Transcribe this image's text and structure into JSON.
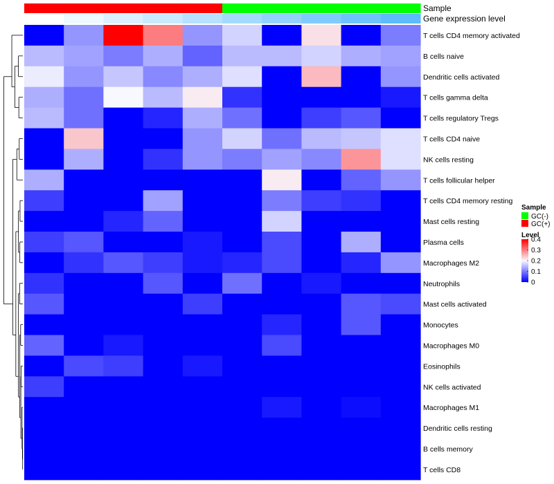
{
  "chart_data": {
    "type": "heatmap",
    "title": "",
    "annotation_labels": [
      "Sample",
      "Gene expression level"
    ],
    "rows": [
      "T cells CD4 memory activated",
      "B cells naive",
      "Dendritic cells activated",
      "T cells gamma delta",
      "T cells regulatory  Tregs",
      "T cells CD4 naive",
      "NK cells resting",
      "T cells follicular helper",
      "T cells CD4 memory resting",
      "Mast cells resting",
      "Plasma cells",
      "Macrophages M2",
      "Neutrophils",
      "Mast cells activated",
      "Monocytes",
      "Macrophages M0",
      "Eosinophils",
      "NK cells activated",
      "Macrophages M1",
      "Dendritic cells resting",
      "B cells memory",
      "T cells CD8"
    ],
    "sample_groups": [
      "GC(+)",
      "GC(+)",
      "GC(+)",
      "GC(+)",
      "GC(+)",
      "GC(-)",
      "GC(-)",
      "GC(-)",
      "GC(-)",
      "GC(-)"
    ],
    "sample_group_colors": {
      "GC(-)": "#00ff00",
      "GC(+)": "#ff0000"
    },
    "expression_annotation": [
      0.0,
      0.02,
      0.04,
      0.06,
      0.08,
      0.1,
      0.12,
      0.14,
      0.16,
      0.18
    ],
    "values": [
      [
        0.0,
        0.12,
        0.4,
        0.3,
        0.12,
        0.17,
        0.0,
        0.22,
        0.0,
        0.1
      ],
      [
        0.15,
        0.13,
        0.1,
        0.14,
        0.08,
        0.15,
        0.15,
        0.17,
        0.14,
        0.13
      ],
      [
        0.19,
        0.12,
        0.16,
        0.11,
        0.14,
        0.18,
        0.0,
        0.25,
        0.0,
        0.12
      ],
      [
        0.14,
        0.09,
        0.2,
        0.15,
        0.21,
        0.04,
        0.0,
        0.0,
        0.0,
        0.02
      ],
      [
        0.15,
        0.09,
        0.0,
        0.03,
        0.14,
        0.09,
        0.0,
        0.05,
        0.07,
        0.0
      ],
      [
        0.0,
        0.24,
        0.0,
        0.0,
        0.12,
        0.17,
        0.09,
        0.15,
        0.16,
        0.18
      ],
      [
        0.0,
        0.14,
        0.0,
        0.04,
        0.12,
        0.1,
        0.13,
        0.11,
        0.28,
        0.18
      ],
      [
        0.14,
        0.0,
        0.0,
        0.0,
        0.0,
        0.0,
        0.21,
        0.0,
        0.08,
        0.12
      ],
      [
        0.05,
        0.0,
        0.0,
        0.13,
        0.0,
        0.0,
        0.1,
        0.05,
        0.04,
        0.0
      ],
      [
        0.0,
        0.0,
        0.03,
        0.08,
        0.0,
        0.0,
        0.17,
        0.0,
        0.0,
        0.0
      ],
      [
        0.05,
        0.07,
        0.0,
        0.0,
        0.02,
        0.0,
        0.06,
        0.0,
        0.14,
        0.0
      ],
      [
        0.0,
        0.04,
        0.07,
        0.05,
        0.02,
        0.03,
        0.06,
        0.0,
        0.03,
        0.12
      ],
      [
        0.04,
        0.0,
        0.0,
        0.07,
        0.0,
        0.09,
        0.0,
        0.02,
        0.0,
        0.0
      ],
      [
        0.07,
        0.0,
        0.0,
        0.0,
        0.05,
        0.0,
        0.0,
        0.0,
        0.07,
        0.06
      ],
      [
        0.0,
        0.0,
        0.0,
        0.0,
        0.0,
        0.0,
        0.03,
        0.0,
        0.07,
        0.0
      ],
      [
        0.08,
        0.0,
        0.02,
        0.0,
        0.0,
        0.0,
        0.06,
        0.0,
        0.0,
        0.0
      ],
      [
        0.0,
        0.06,
        0.05,
        0.0,
        0.02,
        0.0,
        0.0,
        0.0,
        0.0,
        0.0
      ],
      [
        0.05,
        0.0,
        0.0,
        0.0,
        0.0,
        0.0,
        0.0,
        0.0,
        0.0,
        0.0
      ],
      [
        0.0,
        0.0,
        0.0,
        0.0,
        0.0,
        0.0,
        0.02,
        0.0,
        0.01,
        0.0
      ],
      [
        0.0,
        0.0,
        0.0,
        0.0,
        0.0,
        0.0,
        0.0,
        0.0,
        0.0,
        0.0
      ],
      [
        0.0,
        0.0,
        0.0,
        0.0,
        0.0,
        0.0,
        0.0,
        0.0,
        0.0,
        0.0
      ],
      [
        0.0,
        0.0,
        0.0,
        0.0,
        0.0,
        0.0,
        0.0,
        0.0,
        0.0,
        0.0
      ]
    ],
    "color_scale": {
      "min": 0,
      "mid": 0.2,
      "max": 0.4,
      "low_color": "#0000ff",
      "mid_color": "#f8f8ff",
      "high_color": "#ff0000"
    },
    "legend": {
      "placement": "right",
      "sample_title": "Sample",
      "sample_entries": [
        {
          "label": "GC(-)",
          "color": "#00ff00"
        },
        {
          "label": "GC(+)",
          "color": "#ff0000"
        }
      ],
      "level_title": "Level",
      "level_ticks": [
        {
          "value": 0.4,
          "label": "0.4"
        },
        {
          "value": 0.3,
          "label": "0.3"
        },
        {
          "value": 0.2,
          "label": "0.2"
        },
        {
          "value": 0.1,
          "label": "0.1"
        },
        {
          "value": 0.0,
          "label": "0"
        }
      ]
    },
    "row_dendrogram": {
      "merges": [
        [
          [
            0,
            1,
            2,
            3,
            4
          ],
          [
            5,
            6,
            7,
            8,
            9,
            10,
            11,
            12,
            13,
            14,
            15,
            16,
            17,
            18,
            19,
            20,
            21
          ],
          0.95
        ],
        [
          [
            0
          ],
          [
            1,
            2,
            3,
            4
          ],
          0.55
        ],
        [
          [
            1,
            2
          ],
          [
            3,
            4
          ],
          0.4
        ],
        [
          [
            1
          ],
          [
            2
          ],
          0.22
        ],
        [
          [
            3
          ],
          [
            4
          ],
          0.2
        ],
        [
          [
            5,
            6,
            7,
            8,
            9,
            10,
            11,
            12,
            13,
            14,
            15,
            16,
            17,
            18,
            19,
            20,
            21
          ],
          [],
          0.0
        ],
        [
          [
            5,
            6,
            7
          ],
          [
            8,
            9,
            10,
            11,
            12,
            13,
            14,
            15,
            16,
            17,
            18,
            19,
            20,
            21
          ],
          0.5
        ],
        [
          [
            5,
            6
          ],
          [
            7
          ],
          0.3
        ],
        [
          [
            5
          ],
          [
            6
          ],
          0.18
        ],
        [
          [
            8,
            9,
            10,
            11
          ],
          [
            12,
            13,
            14,
            15,
            16,
            17,
            18,
            19,
            20,
            21
          ],
          0.35
        ],
        [
          [
            8,
            9
          ],
          [
            10,
            11
          ],
          0.22
        ],
        [
          [
            8
          ],
          [
            9
          ],
          0.14
        ],
        [
          [
            10
          ],
          [
            11
          ],
          0.15
        ],
        [
          [
            12,
            13
          ],
          [
            14,
            15,
            16,
            17,
            18,
            19,
            20,
            21
          ],
          0.22
        ],
        [
          [
            12
          ],
          [
            13
          ],
          0.16
        ],
        [
          [
            14,
            15
          ],
          [
            16,
            17,
            18,
            19,
            20,
            21
          ],
          0.15
        ],
        [
          [
            14
          ],
          [
            15
          ],
          0.11
        ],
        [
          [
            16,
            17
          ],
          [
            18,
            19,
            20,
            21
          ],
          0.1
        ],
        [
          [
            16
          ],
          [
            17
          ],
          0.09
        ],
        [
          [
            18
          ],
          [
            19,
            20,
            21
          ],
          0.04
        ],
        [
          [
            19
          ],
          [
            20,
            21
          ],
          0.02
        ],
        [
          [
            20
          ],
          [
            21
          ],
          0.01
        ]
      ]
    }
  }
}
